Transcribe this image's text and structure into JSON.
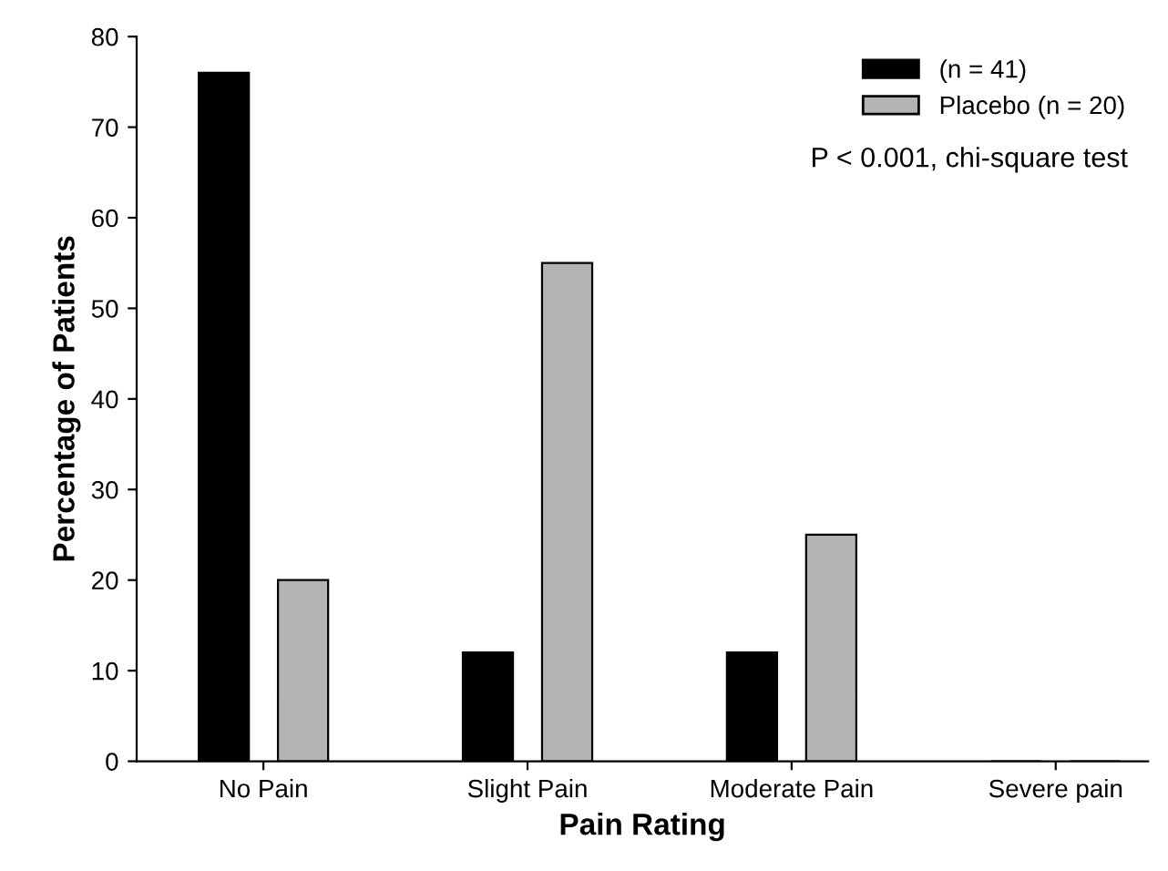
{
  "chart_data": {
    "type": "bar",
    "xlabel": "Pain Rating",
    "ylabel": "Percentage of Patients",
    "categories": [
      "No Pain",
      "Slight Pain",
      "Moderate Pain",
      "Severe pain"
    ],
    "series": [
      {
        "name": "(n = 41)",
        "color": "#000000",
        "values": [
          76,
          12,
          12,
          0
        ]
      },
      {
        "name": "Placebo (n = 20)",
        "color": "#b4b4b4",
        "values": [
          20,
          55,
          25,
          0
        ]
      }
    ],
    "ylim": [
      0,
      80
    ],
    "yticks": [
      0,
      10,
      20,
      30,
      40,
      50,
      60,
      70,
      80
    ],
    "grid": false,
    "legend": "top right",
    "annotations": [
      "P < 0.001, chi-square test"
    ]
  }
}
